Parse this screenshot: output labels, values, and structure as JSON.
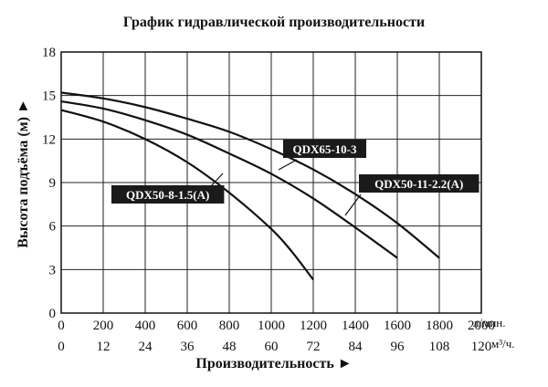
{
  "chart_data": {
    "type": "line",
    "title": "График гидравлической производительности",
    "xlabel": "Производительность ►",
    "ylabel": "Высота подъёма (м) ►",
    "x_unit_primary": "л/мин.",
    "x_unit_secondary": "м³/ч.",
    "x_ticks_primary": [
      "0",
      "200",
      "400",
      "600",
      "800",
      "1000",
      "1200",
      "1400",
      "1600",
      "1800",
      "2000"
    ],
    "x_ticks_secondary": [
      "0",
      "12",
      "24",
      "36",
      "48",
      "60",
      "72",
      "84",
      "96",
      "108",
      "120"
    ],
    "y_ticks": [
      "0",
      "3",
      "6",
      "9",
      "12",
      "15",
      "18"
    ],
    "xlim": [
      0,
      2000
    ],
    "ylim": [
      0,
      18
    ],
    "grid": true,
    "series": [
      {
        "name": "QDX50-8-1.5(A)",
        "x": [
          0,
          200,
          400,
          600,
          800,
          1000,
          1100,
          1200
        ],
        "y": [
          14.0,
          13.2,
          12.0,
          10.4,
          8.3,
          5.8,
          4.2,
          2.3
        ]
      },
      {
        "name": "QDX50-11-2.2(A)",
        "x": [
          0,
          200,
          400,
          600,
          800,
          1000,
          1200,
          1400,
          1600
        ],
        "y": [
          14.6,
          14.1,
          13.3,
          12.3,
          11.0,
          9.6,
          7.9,
          5.9,
          3.8
        ]
      },
      {
        "name": "QDX65-10-3",
        "x": [
          0,
          200,
          400,
          600,
          800,
          1000,
          1200,
          1400,
          1600,
          1800
        ],
        "y": [
          15.2,
          14.8,
          14.2,
          13.4,
          12.5,
          11.3,
          9.9,
          8.2,
          6.2,
          3.8
        ]
      }
    ],
    "labels": [
      "QDX65-10-3",
      "QDX50-11-2.2(A)",
      "QDX50-8-1.5(A)"
    ]
  }
}
